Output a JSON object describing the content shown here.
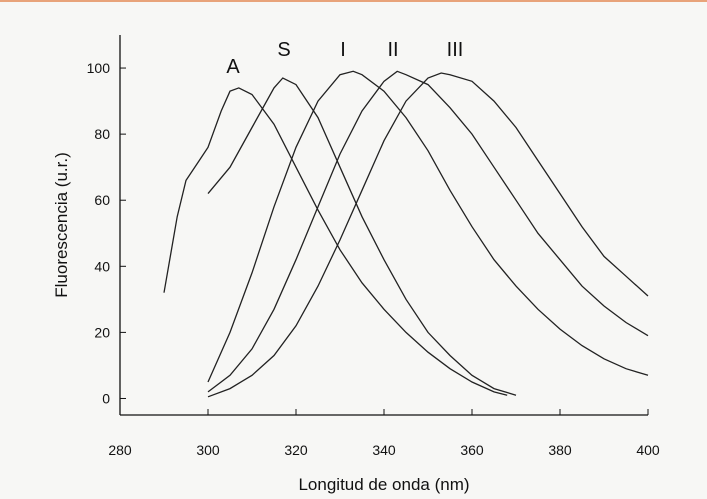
{
  "chart_data": {
    "type": "line",
    "x_label": "Longitud de onda (nm)",
    "y_label": "Fluorescencia (u.r.)",
    "xlim": [
      280,
      400
    ],
    "ylim": [
      -5,
      110
    ],
    "xticks": [
      280,
      300,
      320,
      340,
      360,
      380,
      400
    ],
    "yticks": [
      0,
      20,
      40,
      60,
      80,
      100
    ],
    "series": [
      {
        "name": "A",
        "color": "#222222",
        "x": [
          290,
          293,
          295,
          298,
          300,
          303,
          305,
          307,
          310,
          315,
          320,
          325,
          330,
          335,
          340,
          345,
          350,
          355,
          360,
          365,
          368
        ],
        "values": [
          32,
          55,
          66,
          72,
          76,
          87,
          93,
          94,
          92,
          83,
          70,
          57,
          45,
          35,
          27,
          20,
          14,
          9,
          5,
          2,
          1
        ]
      },
      {
        "name": "S",
        "color": "#222222",
        "x": [
          300,
          305,
          310,
          315,
          317,
          320,
          325,
          330,
          335,
          340,
          345,
          350,
          355,
          360,
          365,
          370
        ],
        "values": [
          62,
          70,
          82,
          94,
          97,
          95,
          85,
          70,
          55,
          42,
          30,
          20,
          13,
          7,
          3,
          1
        ]
      },
      {
        "name": "I",
        "color": "#222222",
        "x": [
          300,
          305,
          310,
          315,
          320,
          325,
          330,
          333,
          335,
          340,
          345,
          350,
          355,
          360,
          365,
          370,
          375,
          380,
          385,
          390,
          395,
          400
        ],
        "values": [
          5,
          20,
          38,
          58,
          76,
          90,
          98,
          99,
          98,
          93,
          85,
          75,
          63,
          52,
          42,
          34,
          27,
          21,
          16,
          12,
          9,
          7
        ]
      },
      {
        "name": "II",
        "color": "#222222",
        "x": [
          300,
          305,
          310,
          315,
          320,
          325,
          330,
          335,
          340,
          343,
          345,
          350,
          355,
          360,
          365,
          370,
          375,
          380,
          385,
          390,
          395,
          400
        ],
        "values": [
          2,
          7,
          15,
          27,
          42,
          58,
          74,
          87,
          96,
          99,
          98,
          95,
          88,
          80,
          70,
          60,
          50,
          42,
          34,
          28,
          23,
          19
        ]
      },
      {
        "name": "III",
        "color": "#222222",
        "x": [
          300,
          305,
          310,
          315,
          320,
          325,
          330,
          335,
          340,
          345,
          350,
          353,
          355,
          360,
          365,
          370,
          375,
          380,
          385,
          390,
          395,
          400
        ],
        "values": [
          0.5,
          3,
          7,
          13,
          22,
          34,
          48,
          63,
          78,
          90,
          97,
          98.5,
          98,
          96,
          90,
          82,
          72,
          62,
          52,
          43,
          37,
          31
        ]
      }
    ]
  }
}
